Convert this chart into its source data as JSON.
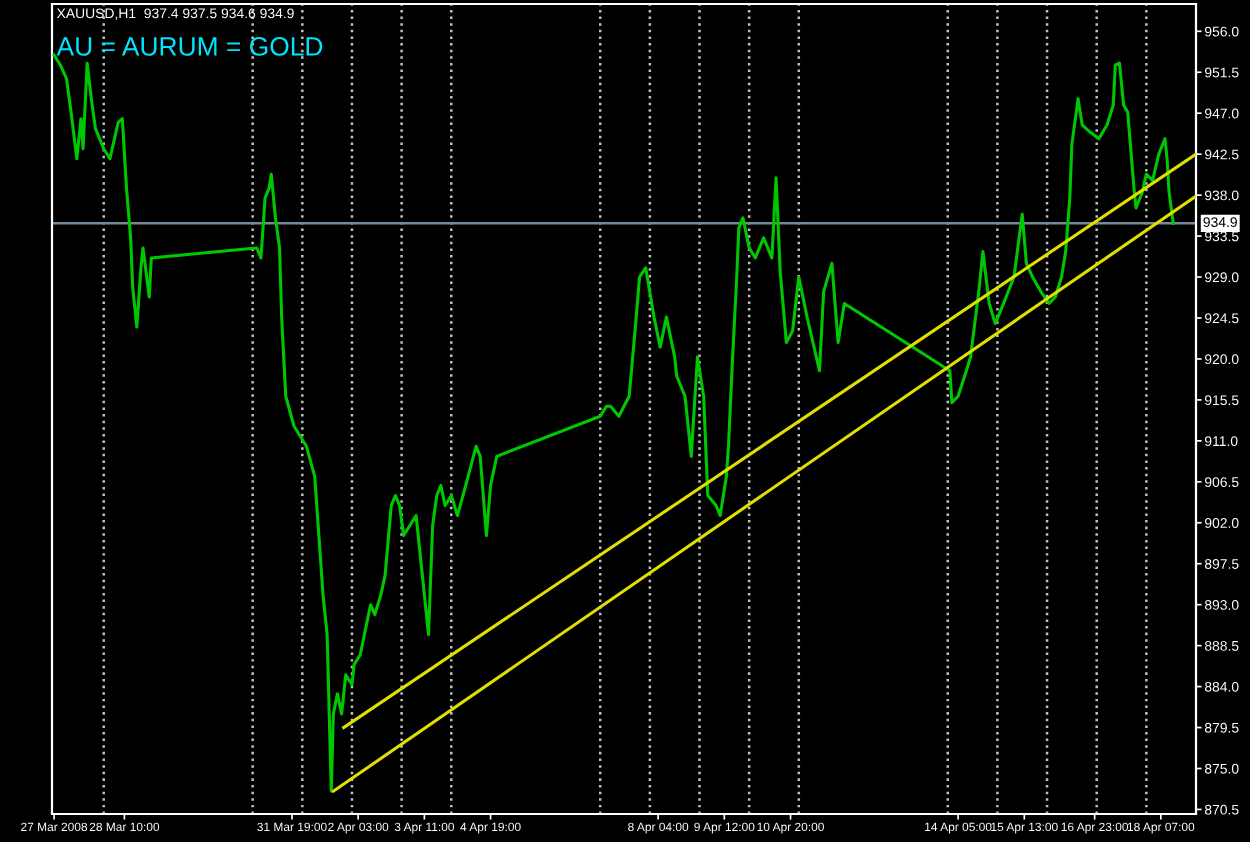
{
  "chart_data": {
    "type": "line",
    "title": "XAUUSD,H1  937.4 937.5 934.6 934.9",
    "annotations": [
      "AU = AURUM = GOLD"
    ],
    "series": [
      {
        "color": "#00c800",
        "x": [
          "2008-03-27T00:00",
          "2008-03-27T03:00",
          "2008-03-27T06:00",
          "2008-03-27T08:00",
          "2008-03-27T11:00",
          "2008-03-27T13:00",
          "2008-03-27T14:00",
          "2008-03-27T16:00",
          "2008-03-27T18:00",
          "2008-03-27T20:00",
          "2008-03-27T22:00",
          "2008-03-28T00:00",
          "2008-03-28T03:00",
          "2008-03-28T07:00",
          "2008-03-28T09:00",
          "2008-03-28T11:00",
          "2008-03-28T13:00",
          "2008-03-28T14:00",
          "2008-03-28T16:00",
          "2008-03-28T18:00",
          "2008-03-28T19:00",
          "2008-03-28T22:00",
          "2008-03-28T23:00",
          "2008-03-31T02:00",
          "2008-03-31T04:00",
          "2008-03-31T06:00",
          "2008-03-31T08:00",
          "2008-03-31T09:00",
          "2008-03-31T11:00",
          "2008-03-31T13:00",
          "2008-03-31T14:00",
          "2008-03-31T16:00",
          "2008-03-31T20:00",
          "2008-04-01T02:00",
          "2008-04-01T06:00",
          "2008-04-01T08:00",
          "2008-04-01T10:00",
          "2008-04-01T12:00",
          "2008-04-01T14:00",
          "2008-04-01T15:00",
          "2008-04-01T17:00",
          "2008-04-01T19:00",
          "2008-04-01T21:00",
          "2008-04-02T00:00",
          "2008-04-02T01:00",
          "2008-04-02T04:00",
          "2008-04-02T06:00",
          "2008-04-02T09:00",
          "2008-04-02T11:00",
          "2008-04-02T14:00",
          "2008-04-02T16:00",
          "2008-04-02T19:00",
          "2008-04-02T21:00",
          "2008-04-02T23:00",
          "2008-04-03T01:00",
          "2008-04-03T04:00",
          "2008-04-03T07:00",
          "2008-04-03T11:00",
          "2008-04-03T13:00",
          "2008-04-03T15:00",
          "2008-04-03T17:00",
          "2008-04-03T19:00",
          "2008-04-03T21:00",
          "2008-04-04T00:00",
          "2008-04-04T03:00",
          "2008-04-04T07:00",
          "2008-04-04T12:00",
          "2008-04-04T14:00",
          "2008-04-04T17:00",
          "2008-04-04T19:00",
          "2008-04-04T22:00",
          "2008-04-07T00:00",
          "2008-04-07T03:00",
          "2008-04-07T05:00",
          "2008-04-07T09:00",
          "2008-04-07T14:00",
          "2008-04-07T17:00",
          "2008-04-07T19:00",
          "2008-04-07T22:00",
          "2008-04-08T02:00",
          "2008-04-08T05:00",
          "2008-04-08T08:00",
          "2008-04-08T12:00",
          "2008-04-08T13:00",
          "2008-04-08T17:00",
          "2008-04-08T20:00",
          "2008-04-08T23:00",
          "2008-04-09T02:00",
          "2008-04-09T04:00",
          "2008-04-09T08:00",
          "2008-04-09T10:00",
          "2008-04-09T13:00",
          "2008-04-09T14:00",
          "2008-04-09T16:00",
          "2008-04-09T18:00",
          "2008-04-09T19:00",
          "2008-04-09T21:00",
          "2008-04-10T00:00",
          "2008-04-10T03:00",
          "2008-04-10T07:00",
          "2008-04-10T11:00",
          "2008-04-10T13:00",
          "2008-04-10T15:00",
          "2008-04-10T18:00",
          "2008-04-10T21:00",
          "2008-04-11T00:00",
          "2008-04-11T04:00",
          "2008-04-11T10:00",
          "2008-04-11T12:00",
          "2008-04-11T16:00",
          "2008-04-11T19:00",
          "2008-04-11T22:00",
          "2008-04-14T01:00",
          "2008-04-14T02:00",
          "2008-04-14T05:00",
          "2008-04-14T09:00",
          "2008-04-14T11:00",
          "2008-04-14T15:00",
          "2008-04-14T17:00",
          "2008-04-14T20:00",
          "2008-04-14T23:00",
          "2008-04-15T03:00",
          "2008-04-15T08:00",
          "2008-04-15T12:00",
          "2008-04-15T14:00",
          "2008-04-15T17:00",
          "2008-04-15T21:00",
          "2008-04-16T01:00",
          "2008-04-16T04:00",
          "2008-04-16T07:00",
          "2008-04-16T09:00",
          "2008-04-16T11:00",
          "2008-04-16T12:00",
          "2008-04-16T15:00",
          "2008-04-16T17:00",
          "2008-04-16T21:00",
          "2008-04-17T01:00",
          "2008-04-17T05:00",
          "2008-04-17T08:00",
          "2008-04-17T09:00",
          "2008-04-17T11:00",
          "2008-04-17T13:00",
          "2008-04-17T15:00",
          "2008-04-17T18:00",
          "2008-04-17T19:00",
          "2008-04-17T22:00",
          "2008-04-18T00:00",
          "2008-04-18T03:00",
          "2008-04-18T06:00",
          "2008-04-18T09:00",
          "2008-04-18T10:00",
          "2008-04-18T11:00",
          "2008-04-18T13:00"
        ],
        "values": [
          953.4,
          952.3,
          950.8,
          947.5,
          942.0,
          946.4,
          943.1,
          952.5,
          948.6,
          945.3,
          944.2,
          943.1,
          942.0,
          946.0,
          946.4,
          938.8,
          933.3,
          927.9,
          923.5,
          930.0,
          932.2,
          926.8,
          931.1,
          932.2,
          931.1,
          937.7,
          938.8,
          940.3,
          935.5,
          932.2,
          924.6,
          915.9,
          912.6,
          910.4,
          907.1,
          900.6,
          894.1,
          889.7,
          872.5,
          881.0,
          883.2,
          881.0,
          885.3,
          884.2,
          886.4,
          887.5,
          889.7,
          893.0,
          891.9,
          894.1,
          896.2,
          903.9,
          905.0,
          903.9,
          900.6,
          901.7,
          902.8,
          894.1,
          889.7,
          901.7,
          905.0,
          906.1,
          903.9,
          905.0,
          902.8,
          906.1,
          910.4,
          909.3,
          900.6,
          906.1,
          909.3,
          913.7,
          914.8,
          914.8,
          913.7,
          915.9,
          923.5,
          929.0,
          930.0,
          924.6,
          921.3,
          924.6,
          920.2,
          918.1,
          915.9,
          909.3,
          920.2,
          915.9,
          905.0,
          903.9,
          902.8,
          907.1,
          910.4,
          920.2,
          929.0,
          934.4,
          935.5,
          932.2,
          931.1,
          933.3,
          931.1,
          939.9,
          929.6,
          921.8,
          923.1,
          929.0,
          924.6,
          918.7,
          927.4,
          930.5,
          921.8,
          926.1,
          918.7,
          915.2,
          915.9,
          918.7,
          920.2,
          927.4,
          931.8,
          926.1,
          923.9,
          926.1,
          929.0,
          935.9,
          930.5,
          929.0,
          927.4,
          926.1,
          926.8,
          929.0,
          931.8,
          937.7,
          943.6,
          948.6,
          945.7,
          944.9,
          944.2,
          945.7,
          947.9,
          952.3,
          952.5,
          947.9,
          947.1,
          938.8,
          936.6,
          938.3,
          940.3,
          939.6,
          942.5,
          944.2,
          942.0,
          938.3,
          934.9
        ]
      },
      {
        "color": "#e0e000",
        "x": [
          "2008-04-01T20:00",
          "2008-04-19T00:00"
        ],
        "values": [
          879.5,
          942.5
        ]
      },
      {
        "color": "#e0e000",
        "x": [
          "2008-04-01T15:00",
          "2008-04-19T00:00"
        ],
        "values": [
          872.5,
          937.9
        ]
      }
    ],
    "xlim": [
      "2008-03-26T23:00",
      "2008-04-19T00:00"
    ],
    "xticks": [
      {
        "value": "2008-03-27T00:00",
        "label": "27 Mar 2008"
      },
      {
        "value": "2008-03-28T10:00",
        "label": "28 Mar 10:00"
      },
      {
        "value": "2008-03-31T19:00",
        "label": "31 Mar 19:00"
      },
      {
        "value": "2008-04-02T03:00",
        "label": "2 Apr 03:00"
      },
      {
        "value": "2008-04-03T11:00",
        "label": "3 Apr 11:00"
      },
      {
        "value": "2008-04-04T19:00",
        "label": "4 Apr 19:00"
      },
      {
        "value": "2008-04-08T04:00",
        "label": "8 Apr 04:00"
      },
      {
        "value": "2008-04-09T12:00",
        "label": "9 Apr 12:00"
      },
      {
        "value": "2008-04-10T20:00",
        "label": "10 Apr 20:00"
      },
      {
        "value": "2008-04-14T05:00",
        "label": "14 Apr 05:00"
      },
      {
        "value": "2008-04-15T13:00",
        "label": "15 Apr 13:00"
      },
      {
        "value": "2008-04-16T23:00",
        "label": "16 Apr 23:00"
      },
      {
        "value": "2008-04-18T07:00",
        "label": "18 Apr 07:00"
      }
    ],
    "ylim": [
      870.0,
      959.0
    ],
    "yticks": [
      {
        "value": 956.0,
        "label": "956.0"
      },
      {
        "value": 951.5,
        "label": "951.5"
      },
      {
        "value": 947.0,
        "label": "947.0"
      },
      {
        "value": 942.5,
        "label": "942.5"
      },
      {
        "value": 938.0,
        "label": "938.0"
      },
      {
        "value": 933.5,
        "label": "933.5"
      },
      {
        "value": 929.0,
        "label": "929.0"
      },
      {
        "value": 924.5,
        "label": "924.5"
      },
      {
        "value": 920.0,
        "label": "920.0"
      },
      {
        "value": 915.5,
        "label": "915.5"
      },
      {
        "value": 911.0,
        "label": "911.0"
      },
      {
        "value": 906.5,
        "label": "906.5"
      },
      {
        "value": 902.0,
        "label": "902.0"
      },
      {
        "value": 897.5,
        "label": "897.5"
      },
      {
        "value": 893.0,
        "label": "893.0"
      },
      {
        "value": 888.5,
        "label": "888.5"
      },
      {
        "value": 884.0,
        "label": "884.0"
      },
      {
        "value": 879.5,
        "label": "879.5"
      },
      {
        "value": 875.0,
        "label": "875.0"
      },
      {
        "value": 870.5,
        "label": "870.5"
      }
    ],
    "ref_lines": [
      {
        "axis": "y",
        "value": 934.9,
        "label": "934.9",
        "color": "#778899",
        "line_style": "solid"
      },
      {
        "axis": "x",
        "value": "2008-03-28",
        "color": "#c0c0c0",
        "line_style": "dotted"
      },
      {
        "axis": "x",
        "value": "2008-03-31",
        "color": "#c0c0c0",
        "line_style": "dotted"
      },
      {
        "axis": "x",
        "value": "2008-04-01",
        "color": "#c0c0c0",
        "line_style": "dotted"
      },
      {
        "axis": "x",
        "value": "2008-04-02",
        "color": "#c0c0c0",
        "line_style": "dotted"
      },
      {
        "axis": "x",
        "value": "2008-04-03",
        "color": "#c0c0c0",
        "line_style": "dotted"
      },
      {
        "axis": "x",
        "value": "2008-04-04",
        "color": "#c0c0c0",
        "line_style": "dotted"
      },
      {
        "axis": "x",
        "value": "2008-04-07",
        "color": "#c0c0c0",
        "line_style": "dotted"
      },
      {
        "axis": "x",
        "value": "2008-04-08",
        "color": "#c0c0c0",
        "line_style": "dotted"
      },
      {
        "axis": "x",
        "value": "2008-04-09",
        "color": "#c0c0c0",
        "line_style": "dotted"
      },
      {
        "axis": "x",
        "value": "2008-04-10",
        "color": "#c0c0c0",
        "line_style": "dotted"
      },
      {
        "axis": "x",
        "value": "2008-04-11",
        "color": "#c0c0c0",
        "line_style": "dotted"
      },
      {
        "axis": "x",
        "value": "2008-04-14",
        "color": "#c0c0c0",
        "line_style": "dotted"
      },
      {
        "axis": "x",
        "value": "2008-04-15",
        "color": "#c0c0c0",
        "line_style": "dotted"
      },
      {
        "axis": "x",
        "value": "2008-04-16",
        "color": "#c0c0c0",
        "line_style": "dotted"
      },
      {
        "axis": "x",
        "value": "2008-04-17",
        "color": "#c0c0c0",
        "line_style": "dotted"
      },
      {
        "axis": "x",
        "value": "2008-04-18",
        "color": "#c0c0c0",
        "line_style": "dotted"
      }
    ],
    "legend": false,
    "marker": "none",
    "line_style": "solid"
  }
}
